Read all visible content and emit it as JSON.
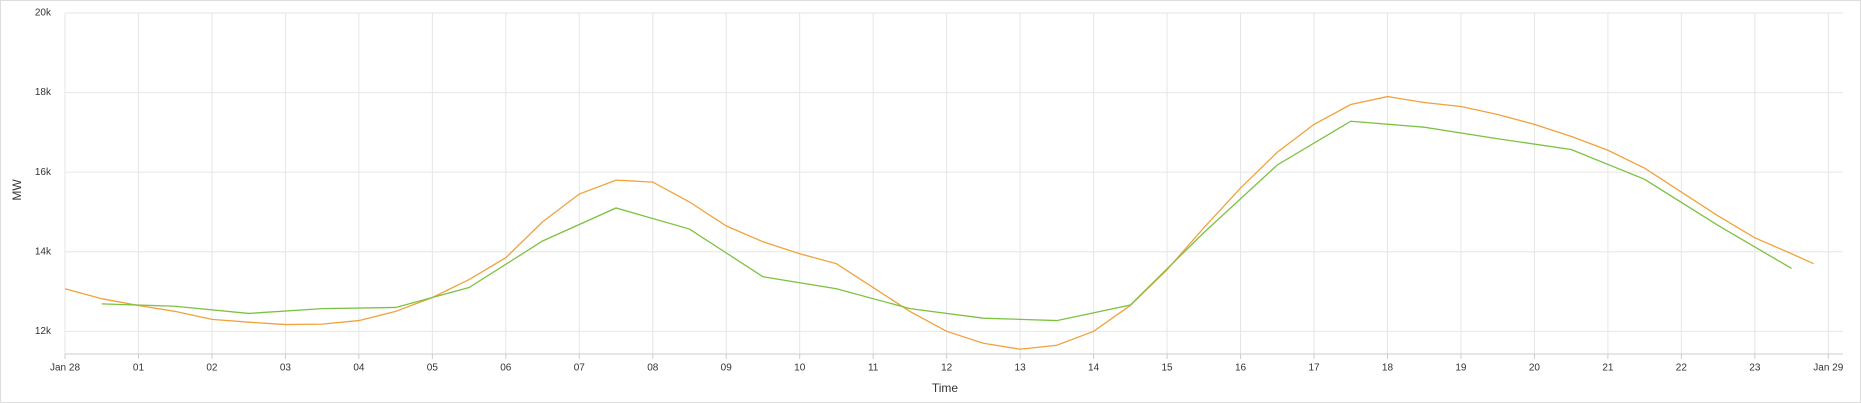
{
  "chart_data": {
    "type": "line",
    "xlabel": "Time",
    "ylabel": "MW",
    "xlim": [
      0,
      24.2
    ],
    "ylim": [
      11430,
      20000
    ],
    "yticks": [
      {
        "value": 12000,
        "label": "12k"
      },
      {
        "value": 14000,
        "label": "14k"
      },
      {
        "value": 16000,
        "label": "16k"
      },
      {
        "value": 18000,
        "label": "18k"
      },
      {
        "value": 20000,
        "label": "20k"
      }
    ],
    "xticks": [
      {
        "value": 0,
        "label": "Jan 28"
      },
      {
        "value": 1,
        "label": "01"
      },
      {
        "value": 2,
        "label": "02"
      },
      {
        "value": 3,
        "label": "03"
      },
      {
        "value": 4,
        "label": "04"
      },
      {
        "value": 5,
        "label": "05"
      },
      {
        "value": 6,
        "label": "06"
      },
      {
        "value": 7,
        "label": "07"
      },
      {
        "value": 8,
        "label": "08"
      },
      {
        "value": 9,
        "label": "09"
      },
      {
        "value": 10,
        "label": "10"
      },
      {
        "value": 11,
        "label": "11"
      },
      {
        "value": 12,
        "label": "12"
      },
      {
        "value": 13,
        "label": "13"
      },
      {
        "value": 14,
        "label": "14"
      },
      {
        "value": 15,
        "label": "15"
      },
      {
        "value": 16,
        "label": "16"
      },
      {
        "value": 17,
        "label": "17"
      },
      {
        "value": 18,
        "label": "18"
      },
      {
        "value": 19,
        "label": "19"
      },
      {
        "value": 20,
        "label": "20"
      },
      {
        "value": 21,
        "label": "21"
      },
      {
        "value": 22,
        "label": "22"
      },
      {
        "value": 23,
        "label": "23"
      },
      {
        "value": 24,
        "label": "Jan 29"
      }
    ],
    "grid": true,
    "series": [
      {
        "color": "#f0a23c",
        "x": [
          0,
          0.5,
          1,
          1.5,
          2,
          2.5,
          3,
          3.5,
          4,
          4.5,
          5,
          5.5,
          6,
          6.5,
          7,
          7.5,
          8,
          8.5,
          9,
          9.5,
          10,
          10.5,
          11,
          11.5,
          12,
          12.5,
          13,
          13.5,
          14,
          14.5,
          15,
          15.5,
          16,
          16.5,
          17,
          17.5,
          18,
          18.5,
          19,
          19.5,
          20,
          20.5,
          21,
          21.5,
          22,
          22.5,
          23,
          23.5,
          23.8
        ],
        "values": [
          13070,
          12820,
          12650,
          12500,
          12300,
          12230,
          12170,
          12180,
          12270,
          12500,
          12850,
          13300,
          13850,
          14750,
          15450,
          15800,
          15750,
          15250,
          14650,
          14250,
          13950,
          13700,
          13100,
          12500,
          12000,
          11700,
          11550,
          11650,
          12000,
          12650,
          13550,
          14600,
          15600,
          16500,
          17200,
          17700,
          17900,
          17750,
          17650,
          17450,
          17200,
          16900,
          16550,
          16100,
          15500,
          14900,
          14350,
          13950,
          13700
        ]
      },
      {
        "color": "#7cc242",
        "x": [
          0.5,
          1.5,
          2.5,
          3.5,
          4.5,
          5.5,
          6.5,
          7.5,
          8.5,
          9.5,
          10.5,
          11.5,
          12.5,
          13.5,
          14.5,
          15.5,
          16.5,
          17.5,
          18.5,
          19.5,
          20.5,
          21.5,
          22.5,
          23.5
        ],
        "values": [
          12690,
          12630,
          12450,
          12570,
          12600,
          13100,
          14270,
          15100,
          14570,
          13370,
          13070,
          12570,
          12330,
          12270,
          12660,
          14480,
          16180,
          17280,
          17130,
          16840,
          16570,
          15820,
          14660,
          13580
        ]
      }
    ]
  }
}
